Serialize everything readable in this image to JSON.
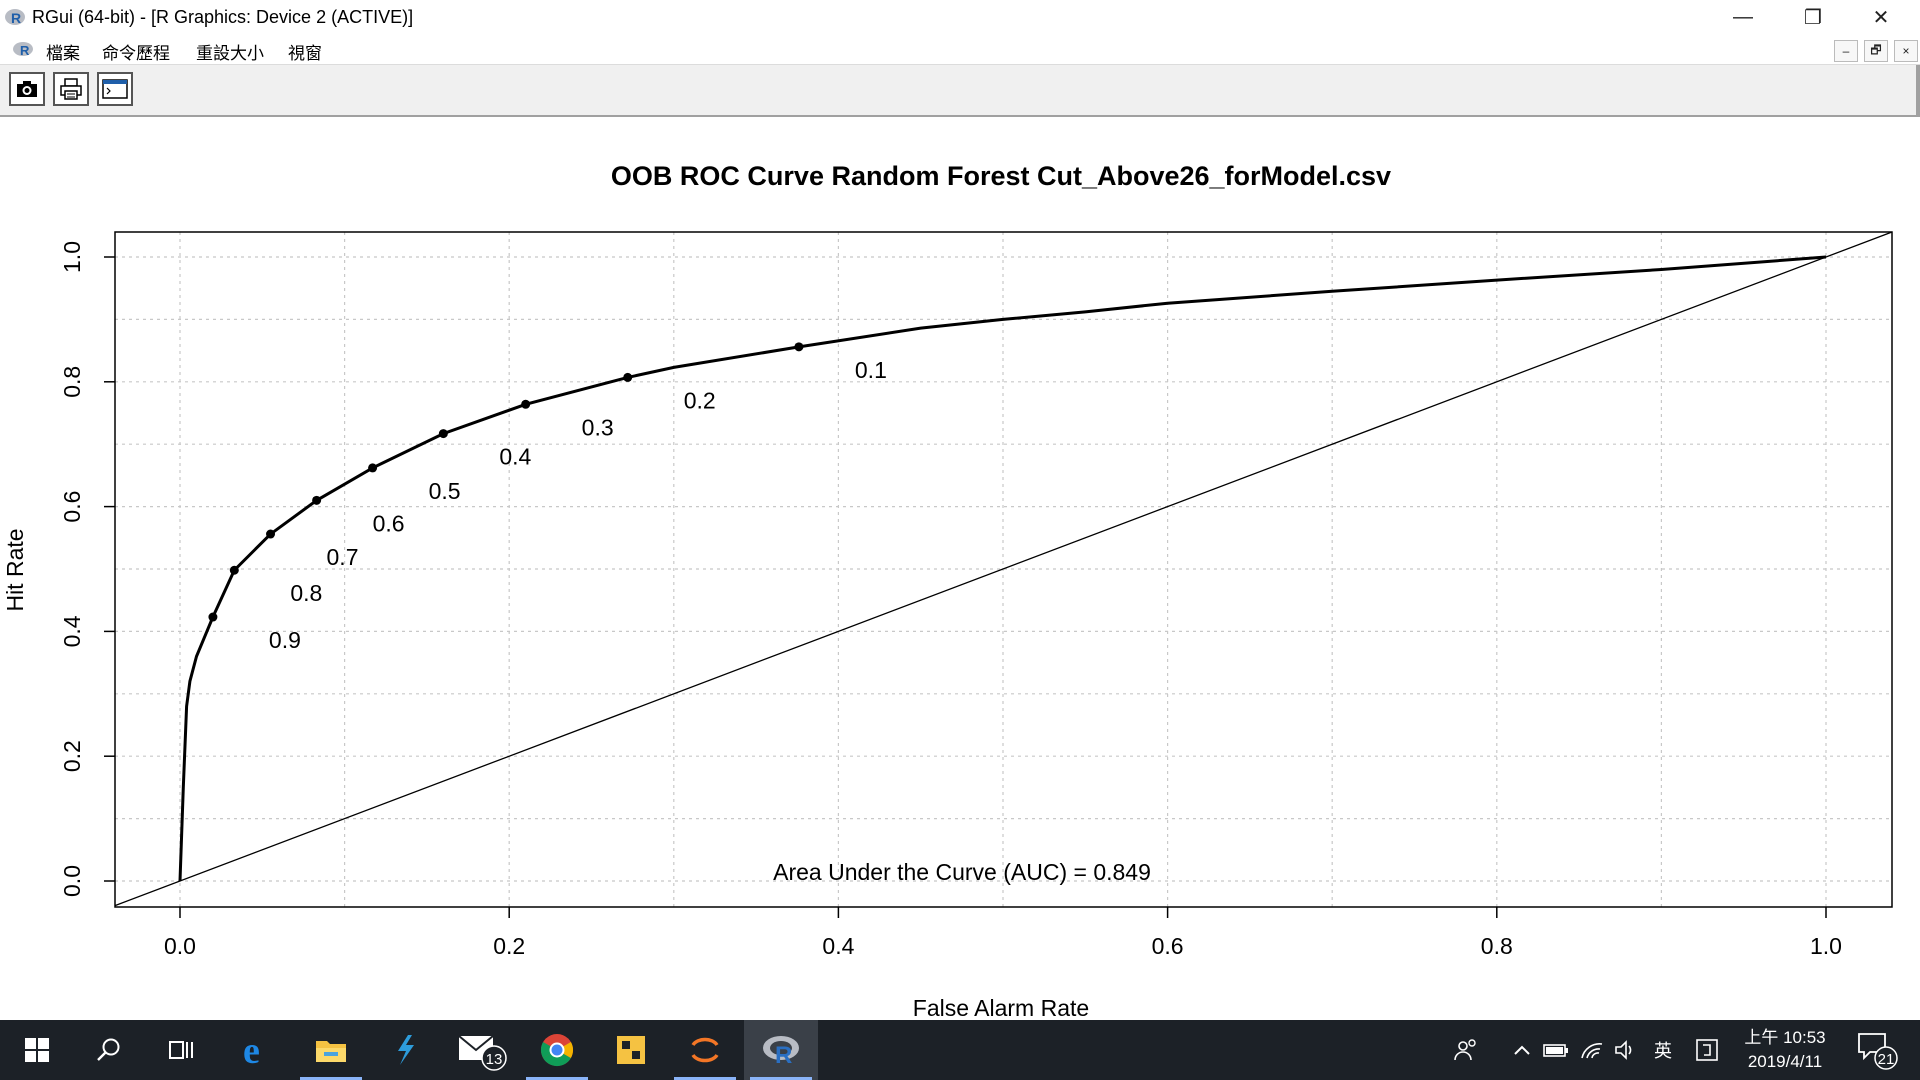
{
  "window": {
    "title": "RGui (64-bit) - [R Graphics: Device 2 (ACTIVE)]",
    "controls": [
      "—",
      "❐",
      "✕"
    ]
  },
  "menu": {
    "items": [
      "檔案",
      "命令歷程",
      "重設大小",
      "視窗"
    ],
    "mdi_controls": [
      "–",
      "🗗",
      "×"
    ]
  },
  "toolbar": {
    "buttons": [
      "camera-icon",
      "printer-icon",
      "console-window-icon"
    ]
  },
  "chart_data": {
    "type": "line",
    "title": "OOB ROC Curve Random Forest Cut_Above26_forModel.csv",
    "xlabel": "False Alarm Rate",
    "ylabel": "Hit Rate",
    "xlim": [
      0,
      1
    ],
    "ylim": [
      0,
      1
    ],
    "xticks": [
      "0.0",
      "0.2",
      "0.4",
      "0.6",
      "0.8",
      "1.0"
    ],
    "yticks": [
      "0.0",
      "0.2",
      "0.4",
      "0.6",
      "0.8",
      "1.0"
    ],
    "grid": true,
    "grid_style": "dotted",
    "reference_line": "diagonal",
    "annotation": "Area Under the Curve (AUC) = 0.849",
    "curve": {
      "x": [
        0.0,
        0.002,
        0.004,
        0.006,
        0.01,
        0.02,
        0.033,
        0.055,
        0.083,
        0.117,
        0.16,
        0.21,
        0.272,
        0.3,
        0.376,
        0.45,
        0.5,
        0.55,
        0.6,
        0.7,
        0.8,
        0.9,
        1.0
      ],
      "y": [
        0.0,
        0.15,
        0.28,
        0.32,
        0.36,
        0.423,
        0.498,
        0.556,
        0.61,
        0.662,
        0.717,
        0.764,
        0.807,
        0.823,
        0.856,
        0.886,
        0.9,
        0.912,
        0.926,
        0.945,
        0.963,
        0.98,
        1.0
      ]
    },
    "thresholds": [
      {
        "label": "0.1",
        "x": 0.376,
        "y": 0.856
      },
      {
        "label": "0.2",
        "x": 0.272,
        "y": 0.807
      },
      {
        "label": "0.3",
        "x": 0.21,
        "y": 0.764
      },
      {
        "label": "0.4",
        "x": 0.16,
        "y": 0.717
      },
      {
        "label": "0.5",
        "x": 0.117,
        "y": 0.662
      },
      {
        "label": "0.6",
        "x": 0.083,
        "y": 0.61
      },
      {
        "label": "0.7",
        "x": 0.055,
        "y": 0.556
      },
      {
        "label": "0.8",
        "x": 0.033,
        "y": 0.498
      },
      {
        "label": "0.9",
        "x": 0.02,
        "y": 0.423
      }
    ]
  },
  "taskbar": {
    "apps": [
      "windows-start-icon",
      "search-icon",
      "task-view-icon",
      "edge-icon",
      "file-explorer-icon",
      "visual-studio-icon",
      "mail-icon",
      "chrome-icon",
      "app-icon",
      "jupyter-icon",
      "r-icon"
    ],
    "mail_badge": "13",
    "ime": "英",
    "time": "上午 10:53",
    "date": "2019/4/11",
    "notification_count": "21"
  }
}
